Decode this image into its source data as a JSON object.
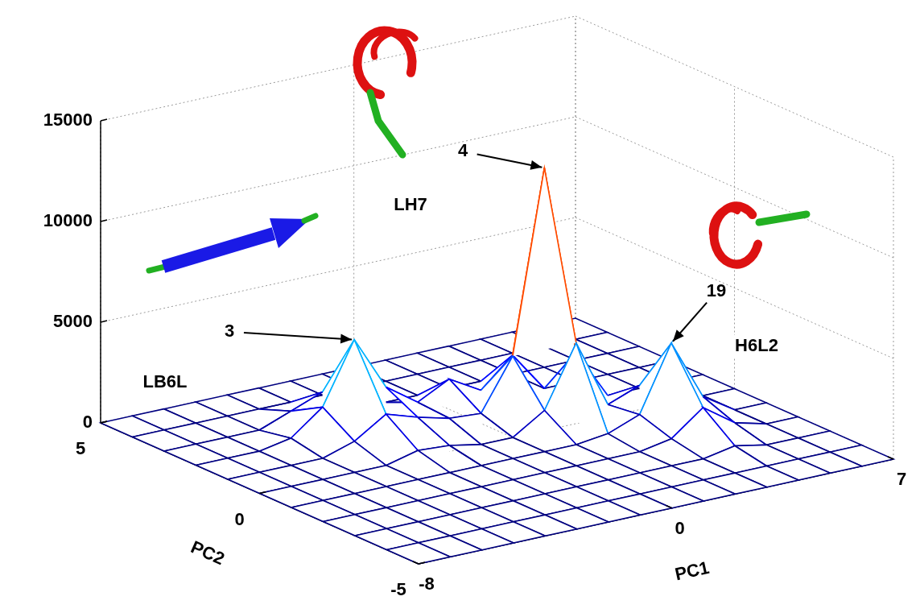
{
  "chart_data": {
    "type": "surface",
    "xlabel": "PC1",
    "ylabel": "PC2",
    "xlim": [
      -8,
      7
    ],
    "xticks": [
      -8,
      0,
      7
    ],
    "ylim": [
      -5,
      5
    ],
    "yticks": [
      -5,
      0,
      5
    ],
    "zlim": [
      0,
      15000
    ],
    "zticks": [
      0,
      5000,
      10000,
      15000
    ],
    "grid": true,
    "x": [
      -8,
      -7,
      -6,
      -5,
      -4,
      -3,
      -2,
      -1,
      0,
      1,
      2,
      3,
      4,
      5,
      6,
      7
    ],
    "y": [
      -5,
      -4,
      -3,
      -2,
      -1,
      0,
      1,
      2,
      3,
      4,
      5
    ],
    "z": [
      [
        0,
        0,
        0,
        0,
        0,
        0,
        0,
        0,
        0,
        0,
        0,
        0,
        0,
        0,
        0,
        0
      ],
      [
        0,
        0,
        0,
        0,
        0,
        0,
        0,
        0,
        0,
        0,
        0,
        0,
        0,
        0,
        0,
        0
      ],
      [
        0,
        0,
        0,
        0,
        0,
        0,
        0,
        0,
        0,
        0,
        0,
        0,
        300,
        0,
        0,
        0
      ],
      [
        0,
        0,
        0,
        0,
        0,
        0,
        0,
        0,
        0,
        0,
        0,
        300,
        1500,
        400,
        0,
        0
      ],
      [
        0,
        0,
        0,
        0,
        0,
        0,
        0,
        0,
        0,
        0,
        200,
        800,
        4000,
        1000,
        0,
        0
      ],
      [
        0,
        0,
        0,
        0,
        0,
        400,
        300,
        0,
        0,
        1000,
        4000,
        600,
        1200,
        0,
        0,
        0
      ],
      [
        0,
        0,
        0,
        0,
        500,
        1500,
        1000,
        600,
        500,
        3000,
        12000,
        2500,
        0,
        0,
        0,
        0
      ],
      [
        0,
        0,
        0,
        300,
        1500,
        4500,
        1800,
        700,
        1500,
        600,
        2000,
        0,
        0,
        0,
        0,
        0
      ],
      [
        0,
        0,
        0,
        0,
        600,
        1200,
        500,
        0,
        0,
        0,
        0,
        0,
        0,
        0,
        0,
        0
      ],
      [
        0,
        0,
        0,
        0,
        0,
        0,
        0,
        0,
        0,
        0,
        0,
        0,
        0,
        0,
        0,
        0
      ],
      [
        0,
        0,
        0,
        0,
        0,
        0,
        0,
        0,
        0,
        0,
        0,
        0,
        0,
        0,
        0,
        0
      ]
    ],
    "annotations": [
      {
        "text": "3",
        "x": -3,
        "y": 2,
        "structure": "LB6L"
      },
      {
        "text": "4",
        "x": 2,
        "y": 1,
        "structure": "LH7"
      },
      {
        "text": "19",
        "x": 4,
        "y": -1,
        "structure": "H6L2"
      }
    ]
  }
}
